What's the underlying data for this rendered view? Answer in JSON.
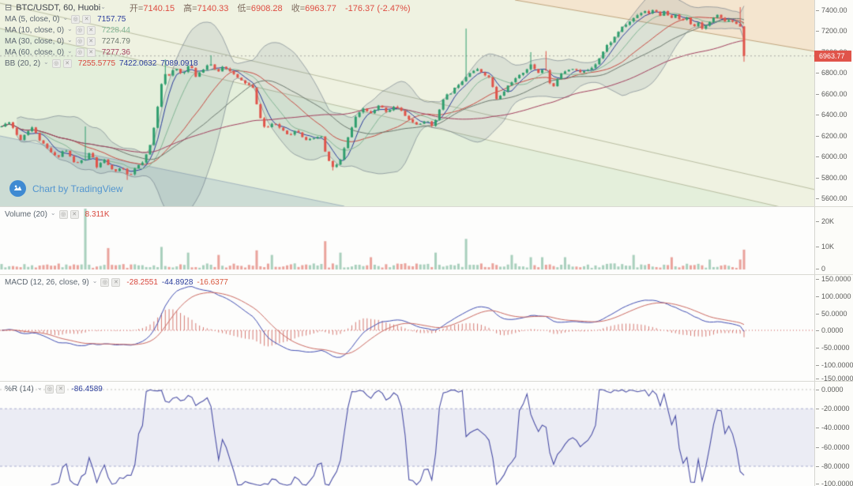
{
  "header": {
    "title": "BTC/USDT, 60, Huobi",
    "ohlc": {
      "o_label": "开=",
      "o": "7140.15",
      "h_label": "高=",
      "h": "7140.33",
      "l_label": "低=",
      "l": "6908.28",
      "c_label": "收=",
      "c": "6963.77",
      "change": "-176.37 (-2.47%)"
    }
  },
  "indicators": {
    "ma5": {
      "label": "MA (5, close, 0)",
      "value": "7157.75"
    },
    "ma10": {
      "label": "MA (10, close, 0)",
      "value": "7228.44"
    },
    "ma30": {
      "label": "MA (30, close, 0)",
      "value": "7274.79"
    },
    "ma60": {
      "label": "MA (60, close, 0)",
      "value": "7277.36"
    },
    "bb": {
      "label": "BB (20, 2)",
      "basis": "7255.5775",
      "upper": "7422.0632",
      "lower": "7089.0918"
    }
  },
  "panes": {
    "volume": {
      "label": "Volume (20)",
      "value": "8.311K"
    },
    "macd": {
      "label": "MACD (12, 26, close, 9)",
      "v1": "-28.2551",
      "v2": "-44.8928",
      "v3": "-16.6377"
    },
    "wr": {
      "label": "%R (14)",
      "value": "-86.4589"
    }
  },
  "price_axis_current": "6963.77",
  "watermark": "Chart by TradingView",
  "colors": {
    "up": "#2f9e6e",
    "down": "#e0544a",
    "badge": "#e0544a",
    "ma5": "#2b3d9c",
    "ma10": "#84b796",
    "ma30": "#6e7a70",
    "ma60": "#a23f5e",
    "bb_basis": "#c94b42",
    "bb_border": "rgba(96,110,125,0.55)",
    "bb_fill": "rgba(96,125,139,0.14)",
    "macd_line": "#4350b4",
    "macd_signal": "#cc6a62",
    "macd_hist": "rgba(204,90,80,0.8)",
    "wr_line": "#4b4fa6",
    "wr_band": "rgba(116,121,191,0.13)"
  },
  "chart_data": {
    "type": "candlestick-multi-pane",
    "symbol": "BTC/USDT",
    "interval": "60",
    "exchange": "Huobi",
    "bg": "#eff2e1",
    "zones": [
      {
        "name": "upper-channel-tan",
        "color": "#f4e5cf",
        "points": [
          [
            652,
            0
          ],
          [
            1032,
            0
          ],
          [
            1032,
            65
          ]
        ]
      },
      {
        "name": "lower-channel-mint",
        "color": "#e4efdb",
        "points": [
          [
            0,
            36
          ],
          [
            1032,
            272
          ],
          [
            1032,
            300
          ],
          [
            0,
            300
          ]
        ]
      },
      {
        "name": "bottom-left-blue",
        "color": "rgba(110,145,185,0.20)",
        "points": [
          [
            0,
            172
          ],
          [
            436,
            261
          ],
          [
            0,
            261
          ]
        ]
      }
    ],
    "lines": [
      {
        "p1": [
          652,
          0
        ],
        "p2": [
          1032,
          65
        ],
        "color": "#c0a57e"
      },
      {
        "p1": [
          0,
          4
        ],
        "p2": [
          1032,
          240
        ],
        "color": "rgba(150,155,120,0.6)"
      },
      {
        "p1": [
          0,
          36
        ],
        "p2": [
          1032,
          272
        ],
        "color": "rgba(150,155,120,0.6)"
      },
      {
        "p1": [
          0,
          172
        ],
        "p2": [
          436,
          261
        ],
        "color": "rgba(130,150,175,0.6)"
      }
    ],
    "price": {
      "ylim": [
        5528,
        7498
      ],
      "x_end": 942,
      "candles": 196,
      "last_open": 7140.15,
      "last_high": 7140.33,
      "last_low": 6908.28,
      "last_close": 6963.77,
      "anchors": [
        [
          0,
          6280
        ],
        [
          12,
          6340
        ],
        [
          25,
          6160
        ],
        [
          40,
          6290
        ],
        [
          52,
          6140
        ],
        [
          62,
          6060
        ],
        [
          72,
          5990
        ],
        [
          82,
          6080
        ],
        [
          95,
          5930
        ],
        [
          108,
          5980
        ],
        [
          115,
          6050
        ],
        [
          122,
          5900
        ],
        [
          133,
          5970
        ],
        [
          143,
          5860
        ],
        [
          155,
          5900
        ],
        [
          163,
          5800
        ],
        [
          172,
          5900
        ],
        [
          182,
          5950
        ],
        [
          192,
          6150
        ],
        [
          200,
          6500
        ],
        [
          207,
          6820
        ],
        [
          213,
          6760
        ],
        [
          222,
          6850
        ],
        [
          230,
          6790
        ],
        [
          240,
          6880
        ],
        [
          248,
          6770
        ],
        [
          257,
          6840
        ],
        [
          266,
          6900
        ],
        [
          274,
          6800
        ],
        [
          283,
          6870
        ],
        [
          292,
          6820
        ],
        [
          302,
          6740
        ],
        [
          312,
          6700
        ],
        [
          320,
          6660
        ],
        [
          327,
          6430
        ],
        [
          336,
          6260
        ],
        [
          345,
          6320
        ],
        [
          356,
          6270
        ],
        [
          366,
          6210
        ],
        [
          376,
          6260
        ],
        [
          386,
          6170
        ],
        [
          396,
          6160
        ],
        [
          406,
          6210
        ],
        [
          414,
          5990
        ],
        [
          422,
          5890
        ],
        [
          431,
          5970
        ],
        [
          441,
          6190
        ],
        [
          450,
          6370
        ],
        [
          460,
          6460
        ],
        [
          470,
          6410
        ],
        [
          480,
          6490
        ],
        [
          490,
          6430
        ],
        [
          500,
          6490
        ],
        [
          510,
          6420
        ],
        [
          520,
          6340
        ],
        [
          531,
          6300
        ],
        [
          541,
          6360
        ],
        [
          548,
          6270
        ],
        [
          555,
          6440
        ],
        [
          563,
          6570
        ],
        [
          572,
          6620
        ],
        [
          581,
          6700
        ],
        [
          589,
          6760
        ],
        [
          596,
          6820
        ],
        [
          605,
          6830
        ],
        [
          614,
          6790
        ],
        [
          621,
          6740
        ],
        [
          629,
          6540
        ],
        [
          637,
          6610
        ],
        [
          646,
          6710
        ],
        [
          656,
          6760
        ],
        [
          665,
          6830
        ],
        [
          673,
          6880
        ],
        [
          681,
          6800
        ],
        [
          690,
          6860
        ],
        [
          699,
          6630
        ],
        [
          708,
          6790
        ],
        [
          717,
          6830
        ],
        [
          726,
          6850
        ],
        [
          735,
          6800
        ],
        [
          744,
          6830
        ],
        [
          752,
          6870
        ],
        [
          760,
          6960
        ],
        [
          768,
          7060
        ],
        [
          776,
          7120
        ],
        [
          784,
          7210
        ],
        [
          792,
          7260
        ],
        [
          800,
          7310
        ],
        [
          808,
          7360
        ],
        [
          816,
          7400
        ],
        [
          822,
          7370
        ],
        [
          828,
          7420
        ],
        [
          835,
          7350
        ],
        [
          842,
          7390
        ],
        [
          849,
          7310
        ],
        [
          856,
          7360
        ],
        [
          863,
          7290
        ],
        [
          870,
          7330
        ],
        [
          877,
          7240
        ],
        [
          884,
          7290
        ],
        [
          890,
          7210
        ],
        [
          896,
          7290
        ],
        [
          902,
          7310
        ],
        [
          908,
          7360
        ],
        [
          914,
          7310
        ],
        [
          920,
          7290
        ],
        [
          926,
          7310
        ],
        [
          931,
          7260
        ],
        [
          936,
          7300
        ],
        [
          940,
          7150
        ],
        [
          942,
          6963.77
        ]
      ],
      "wicks_high": [
        [
          110,
          6290
        ],
        [
          207,
          6930
        ],
        [
          266,
          6970
        ],
        [
          592,
          7225
        ],
        [
          673,
          7000
        ],
        [
          690,
          7010
        ],
        [
          939,
          7430
        ]
      ],
      "wicks_low": [
        [
          163,
          5780
        ],
        [
          422,
          5870
        ],
        [
          941,
          6908.28
        ]
      ]
    },
    "volume": {
      "unit": "K",
      "ylim": [
        0,
        29
      ],
      "last": 8.311,
      "base_max": 2.0,
      "spikes": [
        [
          108,
          27
        ],
        [
          139,
          9
        ],
        [
          205,
          9.5
        ],
        [
          240,
          7
        ],
        [
          278,
          6
        ],
        [
          325,
          8
        ],
        [
          345,
          6
        ],
        [
          412,
          12
        ],
        [
          432,
          7
        ],
        [
          470,
          5
        ],
        [
          553,
          7
        ],
        [
          592,
          13
        ],
        [
          650,
          6
        ],
        [
          672,
          5
        ],
        [
          688,
          5
        ],
        [
          717,
          5
        ],
        [
          800,
          6
        ],
        [
          850,
          5
        ],
        [
          900,
          4
        ],
        [
          935,
          4
        ],
        [
          941,
          8.3
        ]
      ]
    },
    "macd": {
      "params": [
        12,
        26,
        9
      ],
      "ylim": [
        -160,
        160
      ],
      "scale": 0.55,
      "last": [
        -28.2551,
        -44.8928,
        -16.6377
      ]
    },
    "percent_r": {
      "period": 14,
      "ylim": [
        -109,
        8
      ],
      "band": [
        -20,
        -80
      ],
      "last": -86.4589
    },
    "axes": {
      "price": [
        [
          "7400.00",
          13
        ],
        [
          "7200.00",
          39
        ],
        [
          "7000.00",
          66
        ],
        [
          "6800.00",
          92
        ],
        [
          "6600.00",
          119
        ],
        [
          "6400.00",
          145
        ],
        [
          "6200.00",
          172
        ],
        [
          "6000.00",
          198
        ],
        [
          "5800.00",
          225
        ],
        [
          "5600.00",
          251
        ]
      ],
      "volume": [
        [
          "20K",
          18
        ],
        [
          "10K",
          50
        ],
        [
          "0",
          78
        ]
      ],
      "macd": [
        [
          "150.0000",
          5
        ],
        [
          "100.0000",
          27
        ],
        [
          "50.0000",
          49
        ],
        [
          "0.0000",
          70
        ],
        [
          "-50.0000",
          92
        ],
        [
          "-100.0000",
          114
        ],
        [
          "-150.0000",
          131
        ]
      ],
      "wr": [
        [
          "0.0000",
          10
        ],
        [
          "-20.0000",
          34
        ],
        [
          "-40.0000",
          58
        ],
        [
          "-60.0000",
          83
        ],
        [
          "-80.0000",
          107
        ],
        [
          "-100.0000",
          129
        ]
      ]
    }
  }
}
